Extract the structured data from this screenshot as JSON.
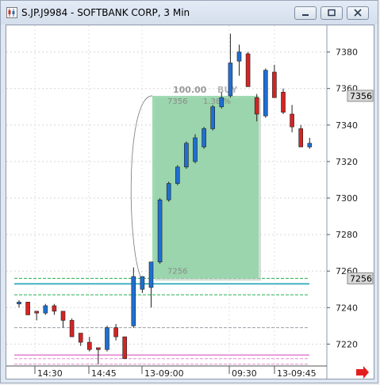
{
  "window": {
    "title": "S.JP.J9984 - SOFTBANK CORP, 3 Min",
    "buttons": [
      {
        "name": "minimize",
        "glyph": "▭"
      },
      {
        "name": "restore",
        "glyph": "□"
      },
      {
        "name": "close",
        "glyph": "✕"
      }
    ]
  },
  "chart_data": {
    "type": "candlestick",
    "ylim": [
      7208,
      7392
    ],
    "yticks": [
      7220,
      7240,
      7260,
      7280,
      7300,
      7320,
      7340,
      7360,
      7380
    ],
    "xticks": [
      "14:30",
      "14:45",
      "13-09:00",
      "09:30",
      "13-09:45"
    ],
    "grid": true,
    "price_markers": [
      {
        "value": 7356,
        "label": "7356"
      },
      {
        "value": 7256,
        "label": "7256"
      }
    ],
    "order_box": {
      "from": 7256,
      "to": 7356,
      "top_label": "100.00",
      "top_label_suffix": "BUY",
      "inner_price_label": "7356",
      "inner_pct_label": "1.38 %",
      "bottom_label": "7256",
      "color": "#8fd4a6"
    },
    "reference_lines": [
      {
        "value": 7256,
        "color": "#22b14c",
        "style": "dashed"
      },
      {
        "value": 7253,
        "color": "#1fa3b8",
        "style": "solid"
      },
      {
        "value": 7247,
        "color": "#22b14c",
        "style": "dashed"
      },
      {
        "value": 7229,
        "color": "#9aa0a6",
        "style": "dashed"
      },
      {
        "value": 7214,
        "color": "#e58ad1",
        "style": "solid"
      },
      {
        "value": 7212,
        "color": "#e58ad1",
        "style": "dashed"
      },
      {
        "value": 7209,
        "color": "#e58ad1",
        "style": "dashed"
      }
    ],
    "candles": [
      {
        "o": 7242,
        "h": 7244,
        "l": 7240,
        "c": 7243
      },
      {
        "o": 7243,
        "h": 7243,
        "l": 7236,
        "c": 7236
      },
      {
        "o": 7238,
        "h": 7238,
        "l": 7233,
        "c": 7237
      },
      {
        "o": 7237,
        "h": 7242,
        "l": 7236,
        "c": 7241
      },
      {
        "o": 7241,
        "h": 7242,
        "l": 7236,
        "c": 7238
      },
      {
        "o": 7238,
        "h": 7238,
        "l": 7229,
        "c": 7233
      },
      {
        "o": 7233,
        "h": 7234,
        "l": 7224,
        "c": 7224
      },
      {
        "o": 7226,
        "h": 7226,
        "l": 7219,
        "c": 7221
      },
      {
        "o": 7221,
        "h": 7224,
        "l": 7216,
        "c": 7217
      },
      {
        "o": 7218,
        "h": 7218,
        "l": 7209,
        "c": 7217
      },
      {
        "o": 7217,
        "h": 7230,
        "l": 7216,
        "c": 7229
      },
      {
        "o": 7229,
        "h": 7231,
        "l": 7222,
        "c": 7224
      },
      {
        "o": 7224,
        "h": 7224,
        "l": 7212,
        "c": 7212
      },
      {
        "o": 7230,
        "h": 7262,
        "l": 7229,
        "c": 7257
      },
      {
        "o": 7250,
        "h": 7257,
        "l": 7248,
        "c": 7257
      },
      {
        "o": 7251,
        "h": 7265,
        "l": 7240,
        "c": 7265
      },
      {
        "o": 7265,
        "h": 7300,
        "l": 7264,
        "c": 7299
      },
      {
        "o": 7299,
        "h": 7309,
        "l": 7298,
        "c": 7308
      },
      {
        "o": 7308,
        "h": 7318,
        "l": 7307,
        "c": 7317
      },
      {
        "o": 7317,
        "h": 7331,
        "l": 7316,
        "c": 7330
      },
      {
        "o": 7320,
        "h": 7335,
        "l": 7319,
        "c": 7333
      },
      {
        "o": 7328,
        "h": 7339,
        "l": 7327,
        "c": 7338
      },
      {
        "o": 7338,
        "h": 7351,
        "l": 7337,
        "c": 7350
      },
      {
        "o": 7350,
        "h": 7358,
        "l": 7349,
        "c": 7355
      },
      {
        "o": 7356,
        "h": 7390,
        "l": 7355,
        "c": 7374
      },
      {
        "o": 7375,
        "h": 7384,
        "l": 7367,
        "c": 7380
      },
      {
        "o": 7379,
        "h": 7380,
        "l": 7361,
        "c": 7361
      },
      {
        "o": 7355,
        "h": 7357,
        "l": 7342,
        "c": 7346
      },
      {
        "o": 7345,
        "h": 7371,
        "l": 7344,
        "c": 7370
      },
      {
        "o": 7369,
        "h": 7373,
        "l": 7355,
        "c": 7355
      },
      {
        "o": 7358,
        "h": 7360,
        "l": 7346,
        "c": 7347
      },
      {
        "o": 7346,
        "h": 7351,
        "l": 7336,
        "c": 7339
      },
      {
        "o": 7338,
        "h": 7340,
        "l": 7328,
        "c": 7328
      },
      {
        "o": 7328,
        "h": 7333,
        "l": 7327,
        "c": 7330
      }
    ]
  }
}
